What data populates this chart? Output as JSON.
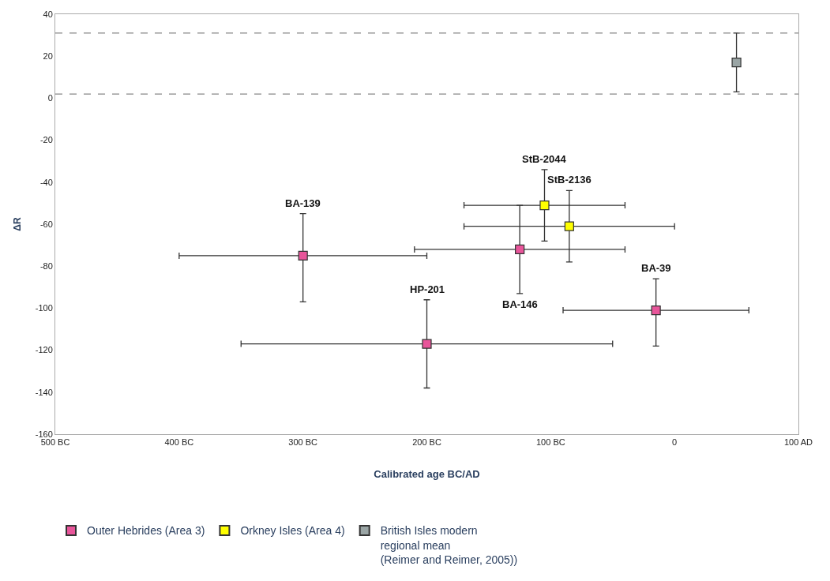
{
  "chart_data": {
    "type": "scatter",
    "xlabel": "Calibrated age BC/AD",
    "ylabel": "ΔR",
    "xlim": [
      -500,
      100
    ],
    "xticks": [
      {
        "value": -500,
        "label": "500 BC"
      },
      {
        "value": -400,
        "label": "400 BC"
      },
      {
        "value": -300,
        "label": "300 BC"
      },
      {
        "value": -200,
        "label": "200 BC"
      },
      {
        "value": -100,
        "label": "100 BC"
      },
      0,
      {
        "value": 100,
        "label": "100 AD"
      }
    ],
    "ylim": [
      -160,
      40
    ],
    "yticks": [
      -160,
      -140,
      -120,
      -100,
      -80,
      -60,
      -40,
      -20,
      0,
      20,
      40
    ],
    "legend": "bottom",
    "marker": "square",
    "series": [
      {
        "name": "Outer Hebrides (Area 3)",
        "color": "#e8559a",
        "x": [
          -300,
          -200,
          -125,
          -15
        ],
        "values": [
          -75,
          -117,
          -72,
          -101
        ],
        "errors": [
          [
            -97,
            -55
          ],
          [
            -138,
            -96
          ],
          [
            -93,
            -51
          ],
          [
            -118,
            -86
          ]
        ],
        "xerrors": [
          [
            -400,
            -200
          ],
          [
            -350,
            -50
          ],
          [
            -210,
            -40
          ],
          [
            -90,
            60
          ]
        ]
      },
      {
        "name": "Orkney Isles (Area 4)",
        "color": "#ffff00",
        "x": [
          -105,
          -85
        ],
        "values": [
          -51,
          -61
        ],
        "errors": [
          [
            -68,
            -34
          ],
          [
            -78,
            -44
          ]
        ],
        "xerrors": [
          [
            -170,
            -40
          ],
          [
            -170,
            0
          ]
        ]
      },
      {
        "name": "British Isles modern\nregional mean\n(Reimer and Reimer, 2005))",
        "color": "#9aa5a5",
        "x": [
          50
        ],
        "values": [
          17
        ],
        "errors": [
          [
            3,
            31
          ]
        ]
      }
    ],
    "ref_lines": [
      {
        "axis": "y",
        "value": 31,
        "line_style": "dashed",
        "color": "#888888"
      },
      {
        "axis": "y",
        "value": 2,
        "line_style": "dashed",
        "color": "#888888"
      }
    ],
    "annotations": [
      {
        "text": "BA-139",
        "x": -300,
        "y": -55
      },
      {
        "text": "HP-201",
        "x": -200,
        "y": -96
      },
      {
        "text": "BA-146",
        "x": -125,
        "y": -93
      },
      {
        "text": "BA-39",
        "x": -15,
        "y": -86
      },
      {
        "text": "StB-2044",
        "x": -105,
        "y": -34
      },
      {
        "text": "StB-2136",
        "x": -85,
        "y": -44
      }
    ]
  }
}
